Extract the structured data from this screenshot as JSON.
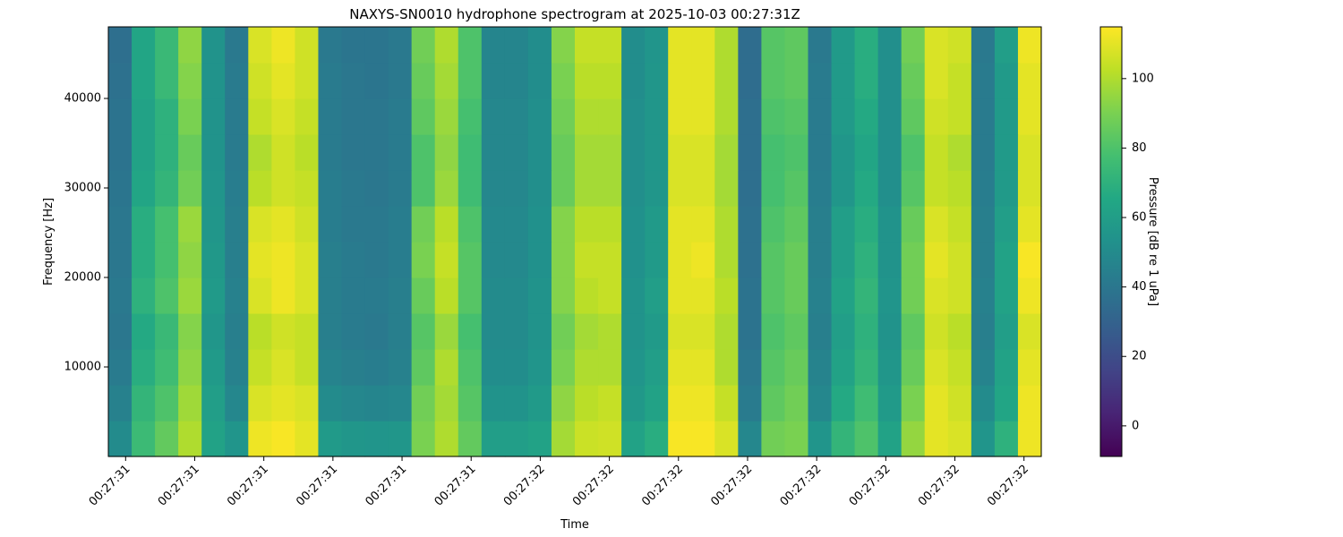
{
  "chart_data": {
    "type": "heatmap",
    "title": "NAXYS-SN0010 hydrophone spectrogram at 2025-10-03 00:27:31Z",
    "xlabel": "Time",
    "ylabel": "Frequency [Hz]",
    "colorbar_label": "Pressure [dB re 1 uPa]",
    "colormap": "viridis",
    "xlim": [
      31.375,
      32.725
    ],
    "xticks": [
      {
        "value": 31.4,
        "label": "00:27:31"
      },
      {
        "value": 31.5,
        "label": "00:27:31"
      },
      {
        "value": 31.6,
        "label": "00:27:31"
      },
      {
        "value": 31.7,
        "label": "00:27:31"
      },
      {
        "value": 31.8,
        "label": "00:27:31"
      },
      {
        "value": 31.9,
        "label": "00:27:31"
      },
      {
        "value": 32.0,
        "label": "00:27:32"
      },
      {
        "value": 32.1,
        "label": "00:27:32"
      },
      {
        "value": 32.2,
        "label": "00:27:32"
      },
      {
        "value": 32.3,
        "label": "00:27:32"
      },
      {
        "value": 32.4,
        "label": "00:27:32"
      },
      {
        "value": 32.5,
        "label": "00:27:32"
      },
      {
        "value": 32.6,
        "label": "00:27:32"
      },
      {
        "value": 32.7,
        "label": "00:27:32"
      }
    ],
    "ylim": [
      0,
      48000
    ],
    "yticks": [
      10000,
      20000,
      30000,
      40000
    ],
    "clim": [
      -8.8,
      114.9
    ],
    "cticks": [
      0,
      20,
      40,
      60,
      80,
      100
    ],
    "z": [
      [
        50,
        75,
        85,
        100,
        62,
        55,
        112,
        114,
        110,
        58,
        56,
        55,
        56,
        90,
        100,
        85,
        60,
        60,
        62,
        98,
        105,
        106,
        62,
        68,
        114,
        114,
        108,
        48,
        88,
        90,
        55,
        72,
        80,
        62,
        95,
        110,
        108,
        55,
        70,
        112
      ],
      [
        45,
        72,
        80,
        97,
        60,
        48,
        108,
        110,
        108,
        50,
        48,
        47,
        48,
        88,
        98,
        82,
        54,
        54,
        58,
        94,
        102,
        104,
        57,
        62,
        112,
        112,
        104,
        42,
        84,
        88,
        48,
        66,
        76,
        58,
        90,
        110,
        106,
        50,
        64,
        112
      ],
      [
        42,
        68,
        76,
        94,
        58,
        45,
        104,
        108,
        104,
        46,
        44,
        43,
        45,
        84,
        100,
        80,
        51,
        51,
        55,
        90,
        100,
        100,
        55,
        60,
        110,
        110,
        100,
        40,
        82,
        86,
        46,
        62,
        72,
        56,
        86,
        108,
        104,
        46,
        62,
        110
      ],
      [
        40,
        66,
        74,
        92,
        56,
        44,
        102,
        106,
        104,
        44,
        42,
        41,
        44,
        82,
        96,
        78,
        50,
        50,
        54,
        88,
        98,
        100,
        54,
        58,
        108,
        108,
        100,
        38,
        80,
        84,
        44,
        60,
        70,
        54,
        84,
        106,
        102,
        44,
        60,
        108
      ],
      [
        41,
        70,
        80,
        96,
        58,
        45,
        108,
        112,
        108,
        44,
        42,
        42,
        44,
        86,
        102,
        82,
        50,
        50,
        54,
        92,
        102,
        104,
        54,
        60,
        110,
        110,
        102,
        38,
        82,
        86,
        45,
        62,
        72,
        55,
        88,
        108,
        106,
        45,
        62,
        112
      ],
      [
        40,
        68,
        78,
        94,
        57,
        44,
        110,
        112,
        108,
        44,
        42,
        41,
        43,
        90,
        104,
        82,
        49,
        49,
        53,
        92,
        104,
        104,
        53,
        58,
        110,
        112,
        100,
        37,
        82,
        86,
        44,
        60,
        70,
        54,
        88,
        110,
        106,
        44,
        62,
        114
      ],
      [
        40,
        68,
        78,
        96,
        56,
        44,
        108,
        110,
        106,
        43,
        41,
        41,
        43,
        88,
        102,
        80,
        49,
        49,
        53,
        92,
        102,
        102,
        53,
        58,
        110,
        110,
        100,
        37,
        80,
        84,
        44,
        60,
        68,
        54,
        86,
        108,
        104,
        44,
        60,
        110
      ],
      [
        39,
        64,
        72,
        88,
        55,
        43,
        102,
        106,
        104,
        43,
        41,
        40,
        42,
        80,
        96,
        76,
        48,
        48,
        52,
        86,
        98,
        98,
        52,
        56,
        108,
        108,
        98,
        36,
        78,
        82,
        43,
        56,
        66,
        52,
        82,
        104,
        102,
        43,
        58,
        108
      ],
      [
        38,
        62,
        70,
        86,
        54,
        42,
        100,
        106,
        102,
        42,
        40,
        40,
        42,
        80,
        94,
        76,
        48,
        48,
        52,
        86,
        98,
        98,
        52,
        56,
        108,
        108,
        98,
        36,
        78,
        80,
        42,
        56,
        64,
        52,
        80,
        104,
        100,
        42,
        58,
        108
      ],
      [
        38,
        62,
        70,
        90,
        54,
        42,
        104,
        108,
        104,
        42,
        40,
        40,
        42,
        84,
        96,
        78,
        48,
        48,
        52,
        88,
        100,
        100,
        52,
        56,
        110,
        110,
        100,
        36,
        80,
        82,
        42,
        58,
        66,
        52,
        84,
        106,
        104,
        42,
        58,
        110
      ],
      [
        37,
        64,
        74,
        92,
        54,
        42,
        106,
        110,
        106,
        42,
        40,
        39,
        41,
        86,
        98,
        80,
        47,
        47,
        51,
        90,
        102,
        102,
        51,
        56,
        110,
        110,
        100,
        35,
        82,
        84,
        42,
        58,
        68,
        52,
        86,
        108,
        104,
        42,
        58,
        110
      ],
      [
        36,
        64,
        74,
        94,
        54,
        41,
        108,
        112,
        106,
        41,
        39,
        39,
        41,
        88,
        100,
        80,
        47,
        47,
        51,
        92,
        104,
        104,
        51,
        55,
        110,
        110,
        100,
        35,
        82,
        84,
        41,
        58,
        68,
        52,
        88,
        108,
        106,
        41,
        60,
        112
      ]
    ]
  }
}
